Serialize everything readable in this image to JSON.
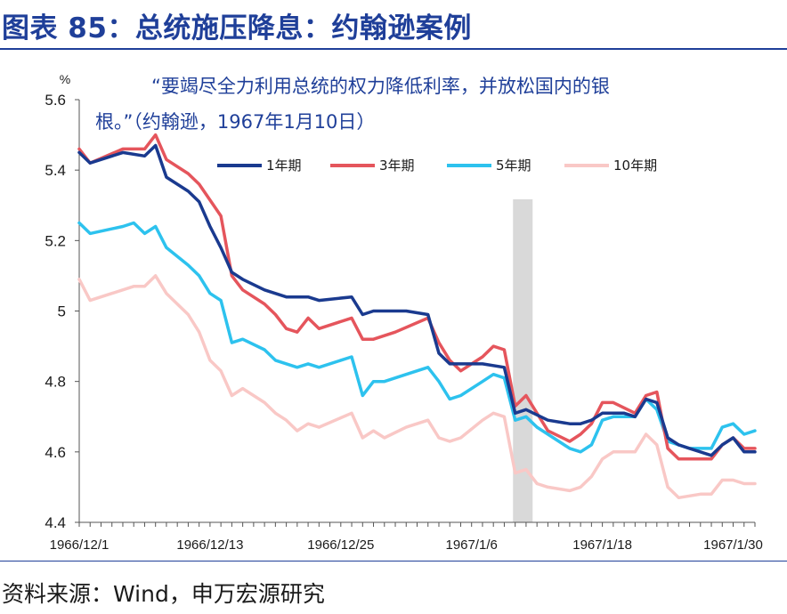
{
  "header": {
    "title": "图表 85：总统施压降息：约翰逊案例"
  },
  "footer": {
    "source": "资料来源：Wind，申万宏源研究"
  },
  "chart_data": {
    "type": "line",
    "ylabel": "%",
    "ylim": [
      4.4,
      5.6
    ],
    "yticks": [
      "4.4",
      "4.6",
      "4.8",
      "5",
      "5.2",
      "5.4",
      "5.6"
    ],
    "xticks": [
      "1966/12/1",
      "1966/12/13",
      "1966/12/25",
      "1967/1/6",
      "1967/1/18",
      "1967/1/30"
    ],
    "x_range_days": [
      0,
      62
    ],
    "annotation": [
      "“要竭尽全力利用总统的权力降低利率，并放松国内的银",
      "根。”（约翰逊，1967年1月10日）"
    ],
    "highlight_band": {
      "start_day": 39.8,
      "end_day": 41.6
    },
    "grid": false,
    "legend_position": "top",
    "colors": {
      "axis": "#555555",
      "band": "#d9d9d9"
    },
    "series": [
      {
        "name": "1年期",
        "color": "#1a3a8f",
        "points": [
          [
            0,
            5.45
          ],
          [
            1,
            5.42
          ],
          [
            4,
            5.45
          ],
          [
            6,
            5.44
          ],
          [
            7,
            5.47
          ],
          [
            8,
            5.38
          ],
          [
            10,
            5.34
          ],
          [
            11,
            5.31
          ],
          [
            12,
            5.24
          ],
          [
            13,
            5.18
          ],
          [
            14,
            5.11
          ],
          [
            15,
            5.09
          ],
          [
            17,
            5.06
          ],
          [
            19,
            5.04
          ],
          [
            21,
            5.04
          ],
          [
            22,
            5.03
          ],
          [
            25,
            5.04
          ],
          [
            26,
            4.99
          ],
          [
            27,
            5.0
          ],
          [
            30,
            5.0
          ],
          [
            32,
            4.99
          ],
          [
            33,
            4.88
          ],
          [
            34,
            4.85
          ],
          [
            35,
            4.85
          ],
          [
            37,
            4.85
          ],
          [
            39,
            4.84
          ],
          [
            40,
            4.71
          ],
          [
            41,
            4.72
          ],
          [
            43,
            4.69
          ],
          [
            45,
            4.68
          ],
          [
            46,
            4.68
          ],
          [
            47,
            4.69
          ],
          [
            48,
            4.71
          ],
          [
            50,
            4.71
          ],
          [
            51,
            4.7
          ],
          [
            52,
            4.75
          ],
          [
            53,
            4.74
          ],
          [
            54,
            4.64
          ],
          [
            55,
            4.62
          ],
          [
            56,
            4.61
          ],
          [
            58,
            4.59
          ],
          [
            59,
            4.62
          ],
          [
            60,
            4.64
          ],
          [
            61,
            4.6
          ],
          [
            62,
            4.6
          ]
        ]
      },
      {
        "name": "3年期",
        "color": "#e5555c",
        "points": [
          [
            0,
            5.46
          ],
          [
            1,
            5.42
          ],
          [
            4,
            5.46
          ],
          [
            6,
            5.46
          ],
          [
            7,
            5.5
          ],
          [
            8,
            5.43
          ],
          [
            10,
            5.39
          ],
          [
            11,
            5.36
          ],
          [
            13,
            5.27
          ],
          [
            14,
            5.1
          ],
          [
            15,
            5.06
          ],
          [
            17,
            5.02
          ],
          [
            18,
            4.99
          ],
          [
            19,
            4.95
          ],
          [
            20,
            4.94
          ],
          [
            21,
            4.98
          ],
          [
            22,
            4.95
          ],
          [
            25,
            4.98
          ],
          [
            26,
            4.92
          ],
          [
            27,
            4.92
          ],
          [
            29,
            4.94
          ],
          [
            32,
            4.98
          ],
          [
            33,
            4.91
          ],
          [
            34,
            4.86
          ],
          [
            35,
            4.83
          ],
          [
            37,
            4.87
          ],
          [
            38,
            4.9
          ],
          [
            39,
            4.89
          ],
          [
            40,
            4.73
          ],
          [
            41,
            4.76
          ],
          [
            43,
            4.66
          ],
          [
            45,
            4.63
          ],
          [
            46,
            4.65
          ],
          [
            47,
            4.68
          ],
          [
            48,
            4.74
          ],
          [
            49,
            4.74
          ],
          [
            51,
            4.71
          ],
          [
            52,
            4.76
          ],
          [
            53,
            4.77
          ],
          [
            54,
            4.61
          ],
          [
            55,
            4.58
          ],
          [
            56,
            4.58
          ],
          [
            58,
            4.58
          ],
          [
            59,
            4.62
          ],
          [
            60,
            4.64
          ],
          [
            61,
            4.61
          ],
          [
            62,
            4.61
          ]
        ]
      },
      {
        "name": "5年期",
        "color": "#2dc2ee",
        "points": [
          [
            0,
            5.25
          ],
          [
            1,
            5.22
          ],
          [
            4,
            5.24
          ],
          [
            5,
            5.25
          ],
          [
            6,
            5.22
          ],
          [
            7,
            5.24
          ],
          [
            8,
            5.18
          ],
          [
            10,
            5.13
          ],
          [
            11,
            5.1
          ],
          [
            12,
            5.05
          ],
          [
            13,
            5.03
          ],
          [
            14,
            4.91
          ],
          [
            15,
            4.92
          ],
          [
            17,
            4.89
          ],
          [
            18,
            4.86
          ],
          [
            20,
            4.84
          ],
          [
            21,
            4.85
          ],
          [
            22,
            4.84
          ],
          [
            25,
            4.87
          ],
          [
            26,
            4.76
          ],
          [
            27,
            4.8
          ],
          [
            28,
            4.8
          ],
          [
            30,
            4.82
          ],
          [
            32,
            4.84
          ],
          [
            33,
            4.8
          ],
          [
            34,
            4.75
          ],
          [
            35,
            4.76
          ],
          [
            37,
            4.8
          ],
          [
            38,
            4.82
          ],
          [
            39,
            4.81
          ],
          [
            40,
            4.69
          ],
          [
            41,
            4.7
          ],
          [
            42,
            4.67
          ],
          [
            43,
            4.65
          ],
          [
            45,
            4.61
          ],
          [
            46,
            4.6
          ],
          [
            47,
            4.62
          ],
          [
            48,
            4.69
          ],
          [
            49,
            4.7
          ],
          [
            51,
            4.7
          ],
          [
            52,
            4.75
          ],
          [
            53,
            4.72
          ],
          [
            54,
            4.63
          ],
          [
            55,
            4.62
          ],
          [
            56,
            4.61
          ],
          [
            58,
            4.61
          ],
          [
            59,
            4.67
          ],
          [
            60,
            4.68
          ],
          [
            61,
            4.65
          ],
          [
            62,
            4.66
          ]
        ]
      },
      {
        "name": "10年期",
        "color": "#f9c8c6",
        "points": [
          [
            0,
            5.09
          ],
          [
            1,
            5.03
          ],
          [
            3,
            5.05
          ],
          [
            5,
            5.07
          ],
          [
            6,
            5.07
          ],
          [
            7,
            5.1
          ],
          [
            8,
            5.05
          ],
          [
            10,
            4.99
          ],
          [
            11,
            4.94
          ],
          [
            12,
            4.86
          ],
          [
            13,
            4.83
          ],
          [
            14,
            4.76
          ],
          [
            15,
            4.78
          ],
          [
            17,
            4.74
          ],
          [
            18,
            4.71
          ],
          [
            19,
            4.69
          ],
          [
            20,
            4.66
          ],
          [
            21,
            4.68
          ],
          [
            22,
            4.67
          ],
          [
            25,
            4.71
          ],
          [
            26,
            4.64
          ],
          [
            27,
            4.66
          ],
          [
            28,
            4.64
          ],
          [
            30,
            4.67
          ],
          [
            32,
            4.69
          ],
          [
            33,
            4.64
          ],
          [
            34,
            4.63
          ],
          [
            35,
            4.64
          ],
          [
            37,
            4.69
          ],
          [
            38,
            4.71
          ],
          [
            39,
            4.7
          ],
          [
            40,
            4.54
          ],
          [
            41,
            4.55
          ],
          [
            42,
            4.51
          ],
          [
            43,
            4.5
          ],
          [
            45,
            4.49
          ],
          [
            46,
            4.5
          ],
          [
            47,
            4.53
          ],
          [
            48,
            4.58
          ],
          [
            49,
            4.6
          ],
          [
            51,
            4.6
          ],
          [
            52,
            4.65
          ],
          [
            53,
            4.62
          ],
          [
            54,
            4.5
          ],
          [
            55,
            4.47
          ],
          [
            57,
            4.48
          ],
          [
            58,
            4.48
          ],
          [
            59,
            4.52
          ],
          [
            60,
            4.52
          ],
          [
            61,
            4.51
          ],
          [
            62,
            4.51
          ]
        ]
      }
    ]
  }
}
